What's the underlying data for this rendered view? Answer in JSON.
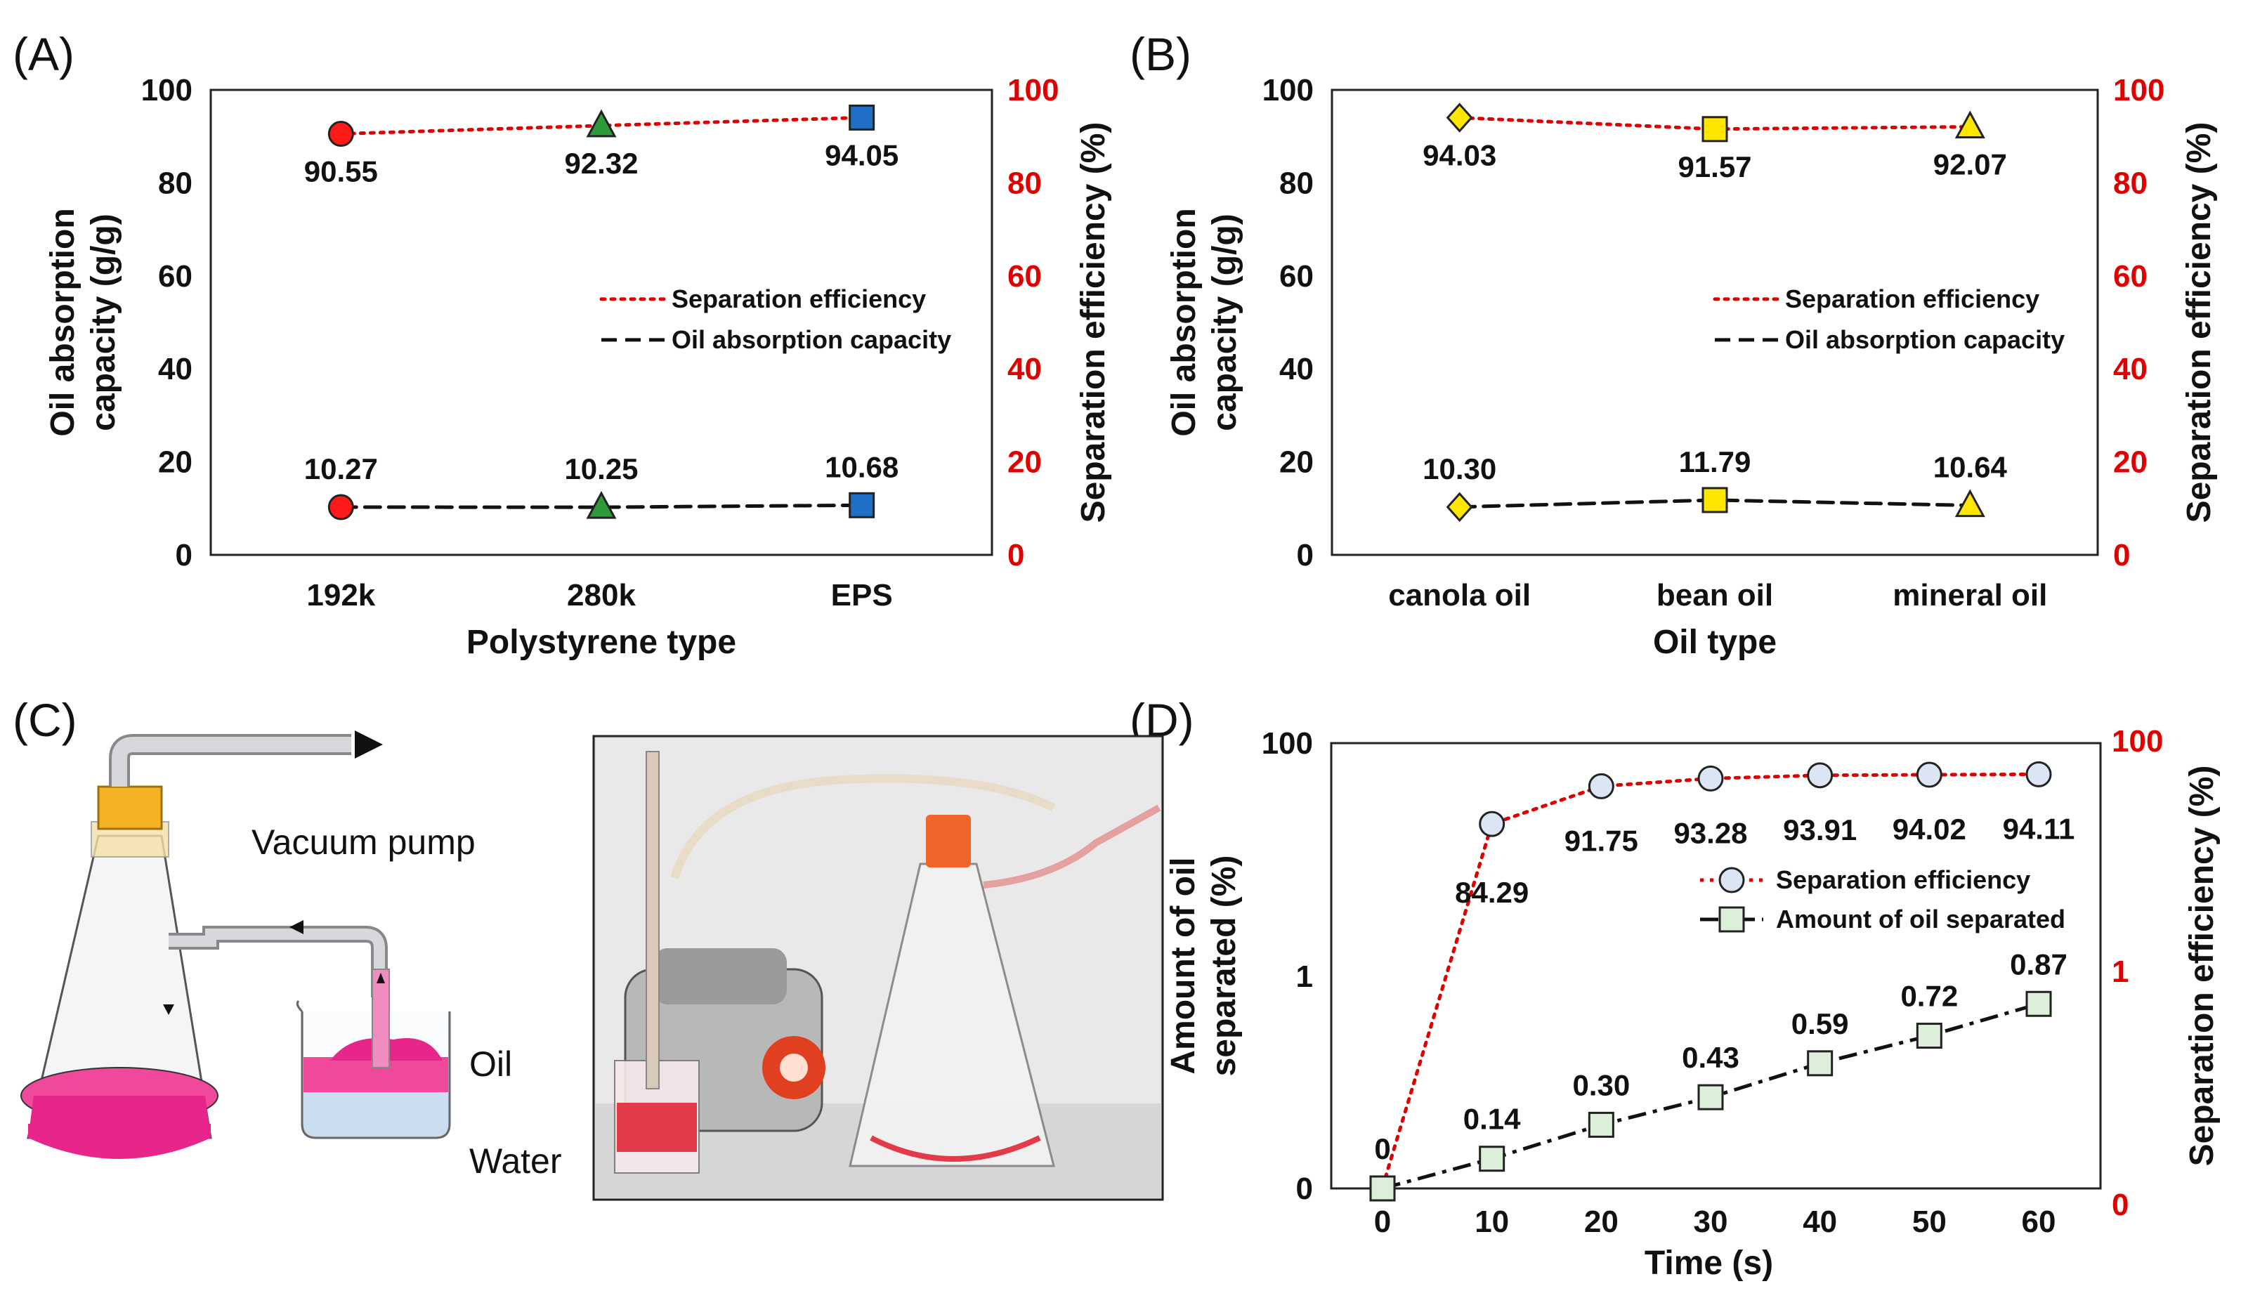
{
  "panels": {
    "A": "(A)",
    "B": "(B)",
    "C": "(C)",
    "D": "(D)"
  },
  "chart_data": [
    {
      "type": "line",
      "panel": "(A)",
      "categories": [
        "192k",
        "280k",
        "EPS"
      ],
      "xlabel": "Polystyrene type",
      "ylabel_left": "Oil absorption capacity (g/g)",
      "ylabel_left_lines": [
        "Oil absorption",
        "capacity (g/g)"
      ],
      "ylabel_right": "Separation efficiency (%)",
      "ylim_left": [
        0,
        100
      ],
      "ylim_right": [
        0,
        100
      ],
      "yticks_left": [
        "0",
        "20",
        "40",
        "60",
        "80",
        "100"
      ],
      "yticks_right": [
        "0",
        "20",
        "40",
        "60",
        "80",
        "100"
      ],
      "legend": [
        "Separation efficiency",
        "Oil absorption capacity"
      ],
      "legend_position": "center-right",
      "series": [
        {
          "name": "Separation efficiency",
          "axis": "right",
          "style": "dotted",
          "color": "#e00000",
          "values": [
            90.55,
            92.32,
            94.05
          ],
          "labels": [
            "90.55",
            "92.32",
            "94.05"
          ],
          "label_position": "below"
        },
        {
          "name": "Oil absorption capacity",
          "axis": "left",
          "style": "dashed",
          "color": "#111111",
          "values": [
            10.27,
            10.25,
            10.68
          ],
          "labels": [
            "10.27",
            "10.25",
            "10.68"
          ],
          "label_position": "above"
        }
      ],
      "markers": [
        {
          "shape": "circle",
          "color": "#ff1a1a"
        },
        {
          "shape": "triangle",
          "color": "#2e9a3a"
        },
        {
          "shape": "square",
          "color": "#1f6fc7"
        }
      ]
    },
    {
      "type": "line",
      "panel": "(B)",
      "categories": [
        "canola oil",
        "bean oil",
        "mineral oil"
      ],
      "xlabel": "Oil type",
      "ylabel_left": "Oil absorption capacity (g/g)",
      "ylabel_left_lines": [
        "Oil absorption",
        "capacity (g/g)"
      ],
      "ylabel_right": "Separation efficiency (%)",
      "ylim_left": [
        0,
        100
      ],
      "ylim_right": [
        0,
        100
      ],
      "yticks_left": [
        "0",
        "20",
        "40",
        "60",
        "80",
        "100"
      ],
      "yticks_right": [
        "0",
        "20",
        "40",
        "60",
        "80",
        "100"
      ],
      "legend": [
        "Separation efficiency",
        "Oil absorption capacity"
      ],
      "legend_position": "center-right",
      "series": [
        {
          "name": "Separation efficiency",
          "axis": "right",
          "style": "dotted",
          "color": "#e00000",
          "values": [
            94.03,
            91.57,
            92.07
          ],
          "labels": [
            "94.03",
            "91.57",
            "92.07"
          ],
          "label_position": "below"
        },
        {
          "name": "Oil absorption capacity",
          "axis": "left",
          "style": "dashed",
          "color": "#111111",
          "values": [
            10.3,
            11.79,
            10.64
          ],
          "labels": [
            "10.30",
            "11.79",
            "10.64"
          ],
          "label_position": "above"
        }
      ],
      "markers": [
        {
          "shape": "diamond",
          "color": "#ffe600"
        },
        {
          "shape": "square",
          "color": "#ffe600"
        },
        {
          "shape": "triangle",
          "color": "#ffe600"
        }
      ]
    },
    {
      "type": "line",
      "panel": "(D)",
      "x": [
        0,
        10,
        20,
        30,
        40,
        50,
        60
      ],
      "xticks": [
        "0",
        "10",
        "20",
        "30",
        "40",
        "50",
        "60"
      ],
      "xlabel": "Time (s)",
      "ylabel_left": "Amount of oil separated (%)",
      "ylabel_left_lines": [
        "Amount of oil",
        "separated (%)"
      ],
      "ylabel_right": "Separation efficiency (%)",
      "yticks_left": [
        "0",
        "1",
        "100"
      ],
      "yticks_right": [
        "0",
        "1",
        "100"
      ],
      "legend": [
        "Separation efficiency",
        "Amount of oil separated"
      ],
      "legend_position": "top-right",
      "series": [
        {
          "name": "Separation efficiency",
          "axis": "right",
          "style": "dotted",
          "color": "#e00000",
          "values": [
            0,
            84.29,
            91.75,
            93.28,
            93.91,
            94.02,
            94.11
          ],
          "labels": [
            "",
            "84.29",
            "91.75",
            "93.28",
            "93.91",
            "94.02",
            "94.11"
          ],
          "marker": "circle",
          "marker_color": "#dbe5f3"
        },
        {
          "name": "Amount of oil separated",
          "axis": "left",
          "style": "dash-dot",
          "color": "#111111",
          "values": [
            0,
            0.14,
            0.3,
            0.43,
            0.59,
            0.72,
            0.87
          ],
          "labels": [
            "0",
            "0.14",
            "0.30",
            "0.43",
            "0.59",
            "0.72",
            "0.87"
          ],
          "marker": "square",
          "marker_color": "#dcefd8"
        }
      ]
    }
  ],
  "illustration": {
    "vacuum_pump_label": "Vacuum pump",
    "oil_label": "Oil",
    "water_label": "Water"
  }
}
